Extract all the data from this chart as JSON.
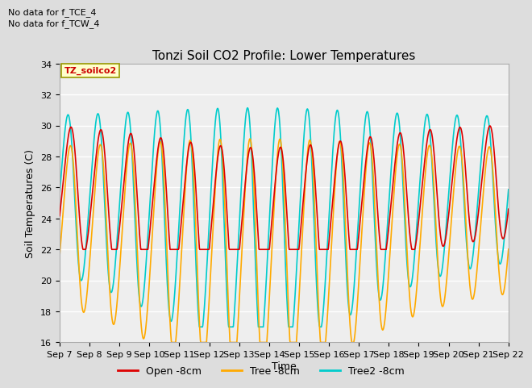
{
  "title": "Tonzi Soil CO2 Profile: Lower Temperatures",
  "ylabel": "Soil Temperatures (C)",
  "xlabel": "Time",
  "ylim": [
    16,
    34
  ],
  "annotation1": "No data for f_TCE_4",
  "annotation2": "No data for f_TCW_4",
  "dataset_label": "TZ_soilco2",
  "legend_entries": [
    "Open -8cm",
    "Tree -8cm",
    "Tree2 -8cm"
  ],
  "legend_colors": [
    "#dd0000",
    "#ffaa00",
    "#00cccc"
  ],
  "xtick_labels": [
    "Sep 7",
    "Sep 8",
    "Sep 9",
    "Sep 10",
    "Sep 11",
    "Sep 12",
    "Sep 13",
    "Sep 14",
    "Sep 15",
    "Sep 16",
    "Sep 17",
    "Sep 18",
    "Sep 19",
    "Sep 20",
    "Sep 21",
    "Sep 22"
  ],
  "bg_color": "#dddddd",
  "plot_bg_color": "#eeeeee",
  "title_fontsize": 11,
  "label_fontsize": 9,
  "tick_fontsize": 8
}
